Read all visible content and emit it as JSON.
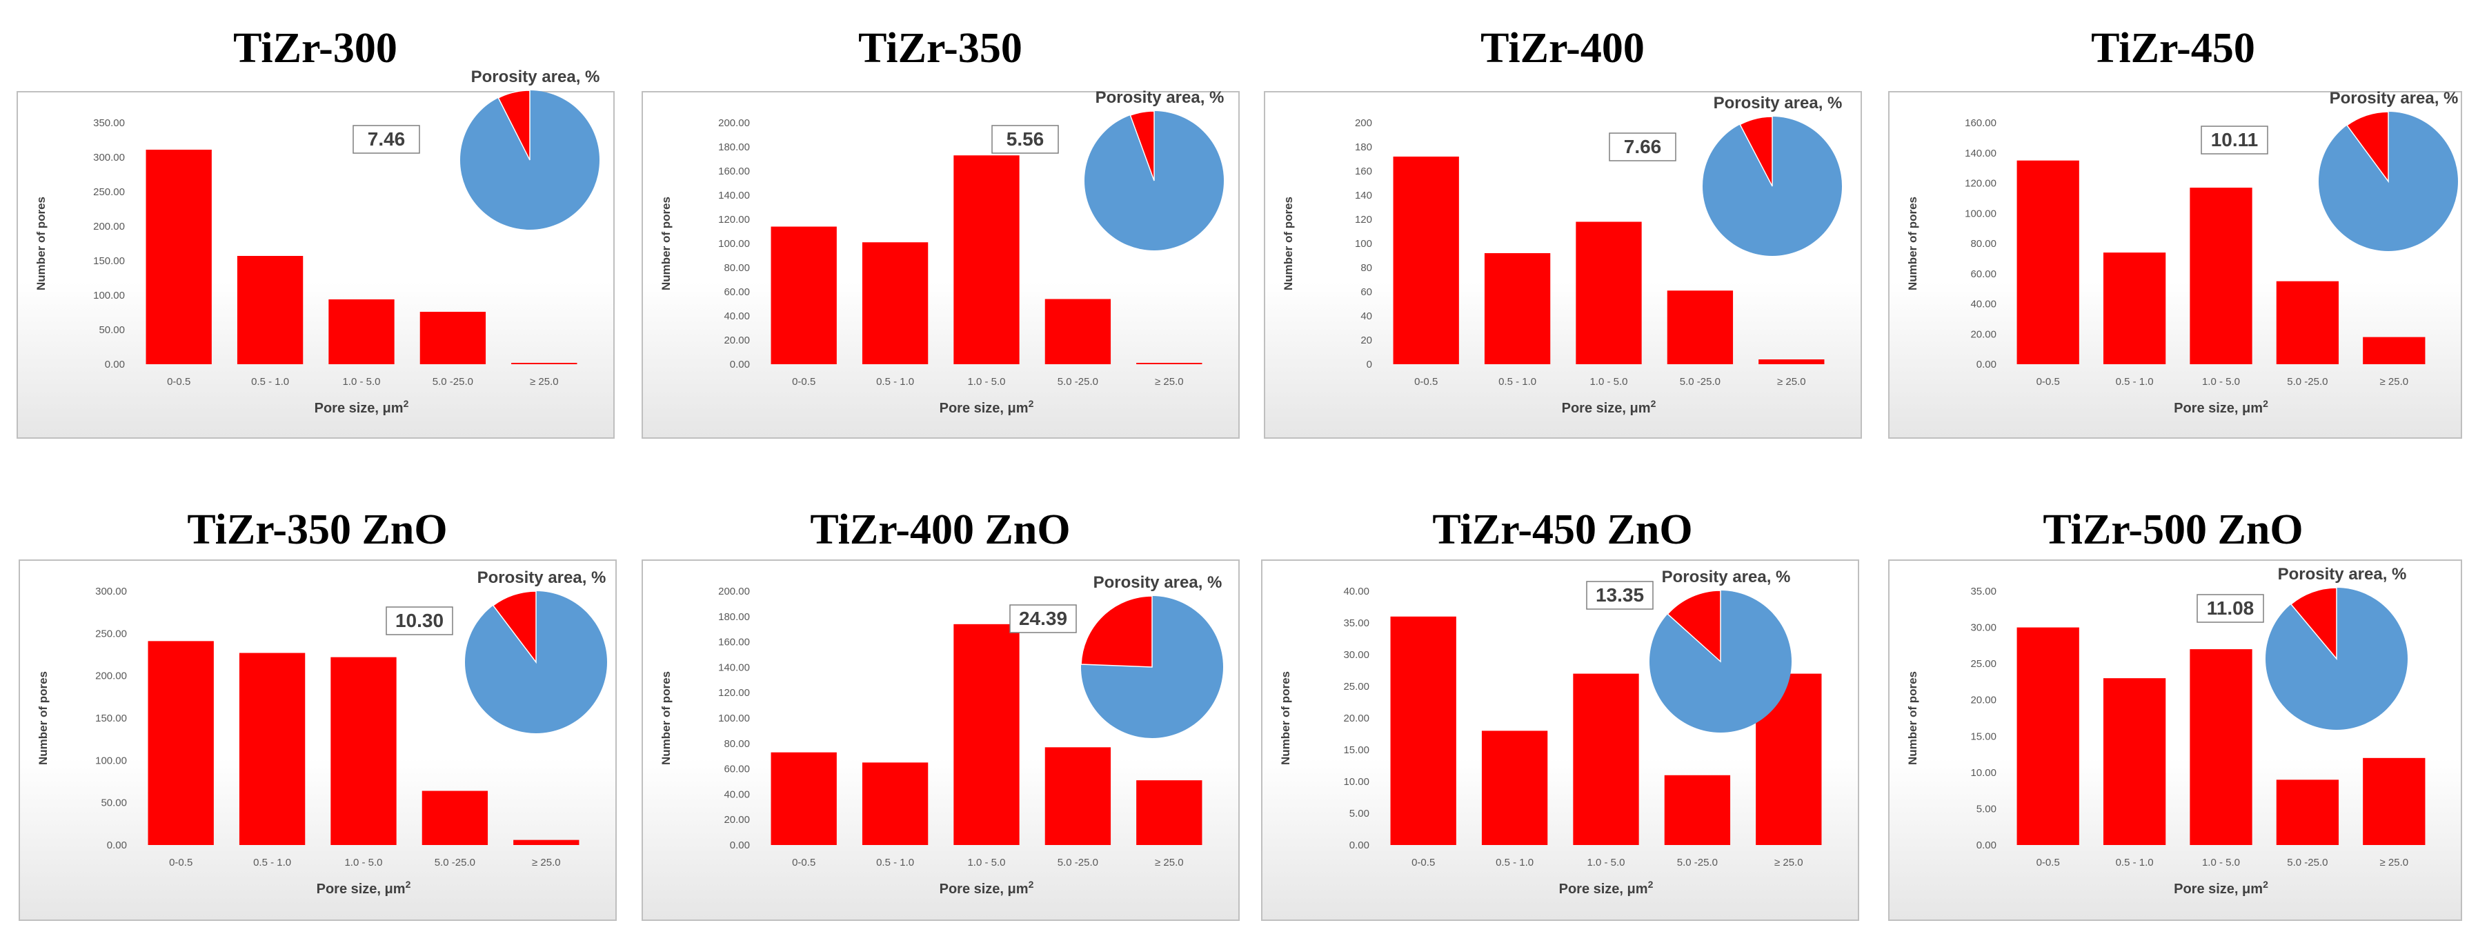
{
  "chart_data": [
    {
      "type": "bar",
      "title": "TiZr-300",
      "categories": [
        "0-0.5",
        "0.5 - 1.0",
        "1.0 - 5.0",
        "5.0 -25.0",
        "≥ 25.0"
      ],
      "values": [
        311,
        157,
        94,
        76,
        1
      ],
      "yticks": [
        "0.00",
        "50.00",
        "100.00",
        "150.00",
        "200.00",
        "250.00",
        "300.00",
        "350.00"
      ],
      "ylim": [
        0,
        350
      ],
      "xlabel": "Pore size, μm",
      "xlabel_sup": "2",
      "ylabel": "Number of pores",
      "porosity": {
        "label": "Porosity area, %",
        "value": 7.46,
        "text": "7.46"
      },
      "colors": {
        "bar": "#ff0000",
        "pie_main": "#5b9bd5",
        "pie_slice": "#ff0000"
      }
    },
    {
      "type": "bar",
      "title": "TiZr-350",
      "categories": [
        "0-0.5",
        "0.5 - 1.0",
        "1.0 - 5.0",
        "5.0 -25.0",
        "≥ 25.0"
      ],
      "values": [
        114,
        101,
        173,
        54,
        0
      ],
      "yticks": [
        "0.00",
        "20.00",
        "40.00",
        "60.00",
        "80.00",
        "100.00",
        "120.00",
        "140.00",
        "160.00",
        "180.00",
        "200.00"
      ],
      "ylim": [
        0,
        200
      ],
      "xlabel": "Pore size, μm",
      "xlabel_sup": "2",
      "ylabel": "Number of pores",
      "porosity": {
        "label": "Porosity area, %",
        "value": 5.56,
        "text": "5.56"
      },
      "colors": {
        "bar": "#ff0000",
        "pie_main": "#5b9bd5",
        "pie_slice": "#ff0000"
      }
    },
    {
      "type": "bar",
      "title": "TiZr-400",
      "categories": [
        "0-0.5",
        "0.5 - 1.0",
        "1.0 - 5.0",
        "5.0 -25.0",
        "≥ 25.0"
      ],
      "values": [
        172,
        92,
        118,
        61,
        4
      ],
      "yticks": [
        "0",
        "20",
        "40",
        "60",
        "80",
        "100",
        "120",
        "140",
        "160",
        "180",
        "200"
      ],
      "ylim": [
        0,
        200
      ],
      "xlabel": "Pore size, μm",
      "xlabel_sup": "2",
      "ylabel": "Number of pores",
      "porosity": {
        "label": "Porosity area, %",
        "value": 7.66,
        "text": "7.66"
      },
      "colors": {
        "bar": "#ff0000",
        "pie_main": "#5b9bd5",
        "pie_slice": "#ff0000"
      }
    },
    {
      "type": "bar",
      "title": "TiZr-450",
      "categories": [
        "0-0.5",
        "0.5 - 1.0",
        "1.0 - 5.0",
        "5.0 -25.0",
        "≥ 25.0"
      ],
      "values": [
        135,
        74,
        117,
        55,
        18
      ],
      "yticks": [
        "0.00",
        "20.00",
        "40.00",
        "60.00",
        "80.00",
        "100.00",
        "120.00",
        "140.00",
        "160.00"
      ],
      "ylim": [
        0,
        160
      ],
      "xlabel": "Pore size, μm",
      "xlabel_sup": "2",
      "ylabel": "Number of pores",
      "porosity": {
        "label": "Porosity area, %",
        "value": 10.11,
        "text": "10.11"
      },
      "colors": {
        "bar": "#ff0000",
        "pie_main": "#5b9bd5",
        "pie_slice": "#ff0000"
      }
    },
    {
      "type": "bar",
      "title": "TiZr-350 ZnO",
      "categories": [
        "0-0.5",
        "0.5 - 1.0",
        "1.0 - 5.0",
        "5.0 -25.0",
        "≥ 25.0"
      ],
      "values": [
        241,
        227,
        222,
        64,
        6
      ],
      "yticks": [
        "0.00",
        "50.00",
        "100.00",
        "150.00",
        "200.00",
        "250.00",
        "300.00"
      ],
      "ylim": [
        0,
        300
      ],
      "xlabel": "Pore size, μm",
      "xlabel_sup": "2",
      "ylabel": "Number of pores",
      "porosity": {
        "label": "Porosity area, %",
        "value": 10.3,
        "text": "10.30"
      },
      "colors": {
        "bar": "#ff0000",
        "pie_main": "#5b9bd5",
        "pie_slice": "#ff0000"
      }
    },
    {
      "type": "bar",
      "title": "TiZr-400 ZnO",
      "categories": [
        "0-0.5",
        "0.5 - 1.0",
        "1.0 - 5.0",
        "5.0 -25.0",
        "≥ 25.0"
      ],
      "values": [
        73,
        65,
        174,
        77,
        51
      ],
      "yticks": [
        "0.00",
        "20.00",
        "40.00",
        "60.00",
        "80.00",
        "100.00",
        "120.00",
        "140.00",
        "160.00",
        "180.00",
        "200.00"
      ],
      "ylim": [
        0,
        200
      ],
      "xlabel": "Pore size, μm",
      "xlabel_sup": "2",
      "ylabel": "Number of pores",
      "porosity": {
        "label": "Porosity area, %",
        "value": 24.39,
        "text": "24.39"
      },
      "colors": {
        "bar": "#ff0000",
        "pie_main": "#5b9bd5",
        "pie_slice": "#ff0000"
      }
    },
    {
      "type": "bar",
      "title": "TiZr-450 ZnO",
      "categories": [
        "0-0.5",
        "0.5 - 1.0",
        "1.0 - 5.0",
        "5.0 -25.0",
        "≥ 25.0"
      ],
      "values": [
        36,
        18,
        27,
        11,
        27
      ],
      "yticks": [
        "0.00",
        "5.00",
        "10.00",
        "15.00",
        "20.00",
        "25.00",
        "30.00",
        "35.00",
        "40.00"
      ],
      "ylim": [
        0,
        40
      ],
      "xlabel": "Pore size, μm",
      "xlabel_sup": "2",
      "ylabel": "Number of pores",
      "porosity": {
        "label": "Porosity area, %",
        "value": 13.35,
        "text": "13.35"
      },
      "colors": {
        "bar": "#ff0000",
        "pie_main": "#5b9bd5",
        "pie_slice": "#ff0000"
      }
    },
    {
      "type": "bar",
      "title": "TiZr-500 ZnO",
      "categories": [
        "0-0.5",
        "0.5 - 1.0",
        "1.0 - 5.0",
        "5.0 -25.0",
        "≥ 25.0"
      ],
      "values": [
        30,
        23,
        27,
        9,
        12
      ],
      "yticks": [
        "0.00",
        "5.00",
        "10.00",
        "15.00",
        "20.00",
        "25.00",
        "30.00",
        "35.00"
      ],
      "ylim": [
        0,
        35
      ],
      "xlabel": "Pore size, μm",
      "xlabel_sup": "2",
      "ylabel": "Number of pores",
      "porosity": {
        "label": "Porosity area, %",
        "value": 11.08,
        "text": "11.08"
      },
      "colors": {
        "bar": "#ff0000",
        "pie_main": "#5b9bd5",
        "pie_slice": "#ff0000"
      }
    }
  ]
}
